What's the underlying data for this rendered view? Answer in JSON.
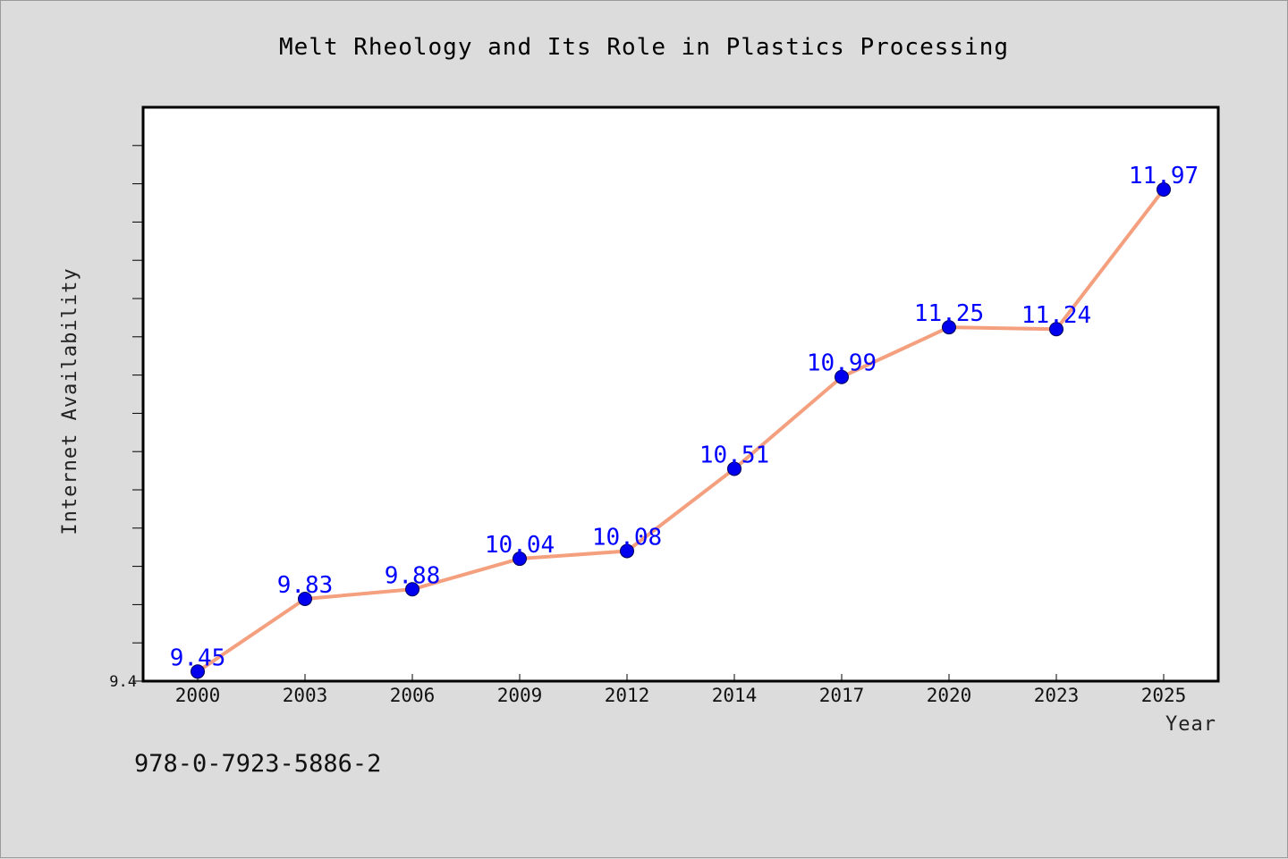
{
  "footer": {
    "isbn": "978-0-7923-5886-2"
  },
  "chart_data": {
    "type": "line",
    "title": "Melt Rheology and Its Role in Plastics Processing",
    "xlabel": "Year",
    "ylabel": "Internet Availability",
    "categories": [
      "2000",
      "2003",
      "2006",
      "2009",
      "2012",
      "2014",
      "2017",
      "2020",
      "2023",
      "2025"
    ],
    "series": [
      {
        "values": [
          9.45,
          9.83,
          9.88,
          10.04,
          10.08,
          10.51,
          10.99,
          11.25,
          11.24,
          11.97
        ]
      }
    ],
    "ylim": [
      9.4,
      12.4
    ],
    "y_tick_labels": [
      "9.4"
    ],
    "grid": false,
    "data_labels": true,
    "colors": {
      "line": "#f4a07f",
      "marker": "#0000ee",
      "data_label": "#0000ff",
      "background": "#dcdcdc",
      "plot_area": "#ffffff"
    }
  }
}
